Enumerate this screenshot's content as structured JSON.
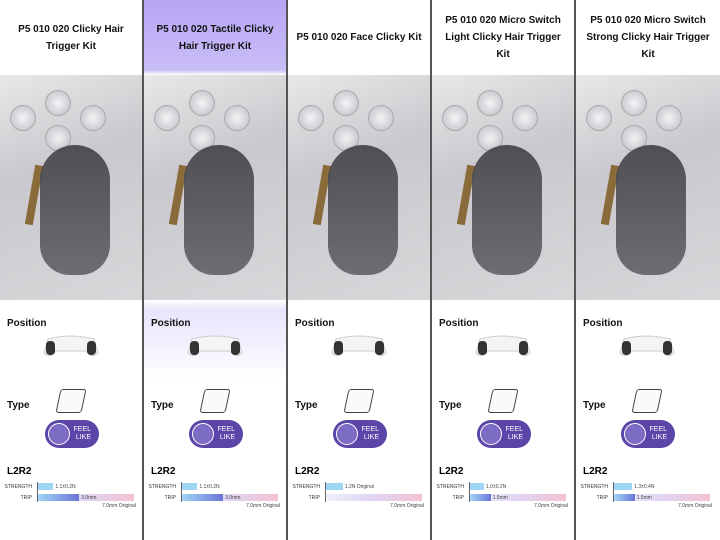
{
  "labels": {
    "position": "Position",
    "type": "Type",
    "l2r2": "L2R2",
    "strength": "STRENGTH",
    "trip": "TRIP",
    "feel": "FEEL",
    "like": "LIKE",
    "original": "7.0mm Original"
  },
  "accent": "#5b46a8",
  "columns": [
    {
      "title": "P5 010 020 Clicky Hair Trigger Kit",
      "strength": "1.1±0.2N",
      "trip": "3.0mm",
      "trip_mm": 3.0,
      "strength_n": 1.1,
      "highlight": false
    },
    {
      "title": "P5 010 020 Tactile Clicky Hair Trigger Kit",
      "strength": "1.1±0.2N",
      "trip": "3.0mm",
      "trip_mm": 3.0,
      "strength_n": 1.1,
      "highlight": true
    },
    {
      "title": "P5 010 020 Face Clicky Kit",
      "strength": "1.2N Original",
      "trip": "",
      "trip_mm": 0,
      "strength_n": 1.2,
      "highlight": false
    },
    {
      "title": "P5 010 020 Micro Switch Light Clicky Hair Trigger Kit",
      "strength": "1.0±0.2N",
      "trip": "1.5mm",
      "trip_mm": 1.5,
      "strength_n": 1.0,
      "highlight": false
    },
    {
      "title": "P5 010 020 Micro Switch Strong Clicky Hair Trigger Kit",
      "strength": "1.3±0.4N",
      "trip": "1.5mm",
      "trip_mm": 1.5,
      "strength_n": 1.3,
      "highlight": false
    }
  ]
}
